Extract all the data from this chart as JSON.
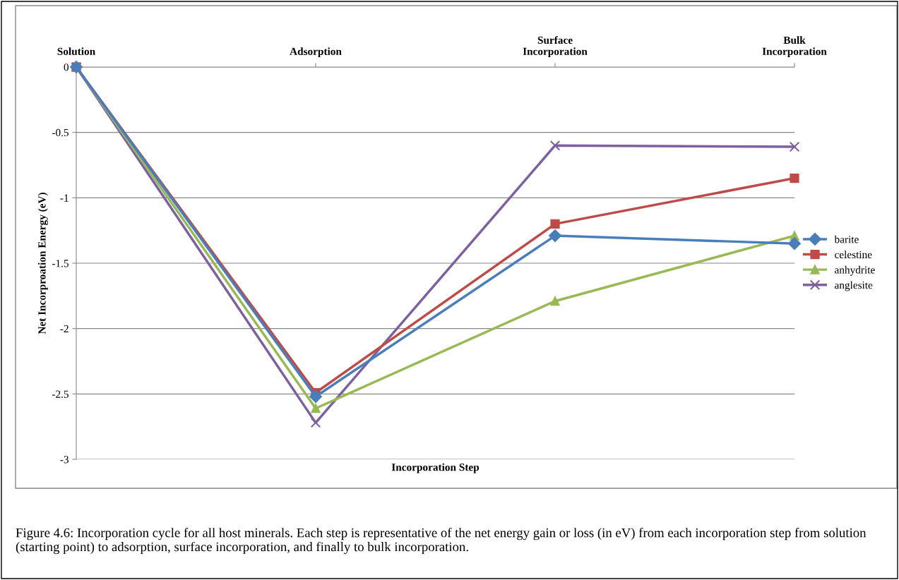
{
  "chart_data": {
    "type": "line",
    "xlabel": "Incorporation Step",
    "ylabel": "Net Incorproation Energy (eV)",
    "categories": [
      "Solution",
      "Adsorption",
      "Surface\nIncorporation",
      "Bulk\nIncorporation"
    ],
    "series": [
      {
        "name": "barite",
        "color": "#4a7ebb",
        "marker": "diamond",
        "values": [
          0,
          -2.52,
          -1.29,
          -1.35
        ]
      },
      {
        "name": "celestine",
        "color": "#be4b48",
        "marker": "square",
        "values": [
          0,
          -2.49,
          -1.2,
          -0.85
        ]
      },
      {
        "name": "anhydrite",
        "color": "#98b954",
        "marker": "triangle",
        "values": [
          0,
          -2.61,
          -1.79,
          -1.29
        ]
      },
      {
        "name": "anglesite",
        "color": "#7d60a0",
        "marker": "cross",
        "values": [
          0,
          -2.72,
          -0.6,
          -0.61
        ]
      }
    ],
    "ylim": [
      -3,
      0
    ],
    "yticks": [
      -3,
      -2.5,
      -2,
      -1.5,
      -1,
      -0.5,
      0
    ],
    "grid": "y",
    "legend": "right",
    "annotations": [
      "Figure 4.6: Incorporation cycle for all host minerals. Each step is representative of the net energy gain or loss (in eV) from each incorporation step from solution (starting point) to adsorption, surface incorporation, and finally to bulk incorporation."
    ]
  }
}
